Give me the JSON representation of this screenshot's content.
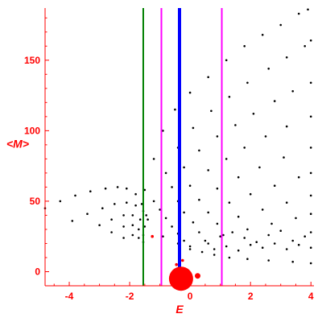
{
  "chart_data": {
    "type": "scatter",
    "xlabel": "E",
    "ylabel": "<M>",
    "xlim": [
      -4.8,
      4.1
    ],
    "ylim": [
      -10,
      187
    ],
    "x_ticks": [
      "-4",
      "-2",
      "0",
      "2",
      "4"
    ],
    "y_ticks": [
      "0",
      "50",
      "100",
      "150"
    ],
    "x_tick_values": [
      -4,
      -2,
      0,
      2,
      4
    ],
    "y_tick_values": [
      0,
      50,
      100,
      150
    ],
    "colors": {
      "axis": "#ff0000",
      "points": "#000000",
      "line_green": "#008000",
      "line_magenta": "#ff00ff",
      "line_blue": "#0000ff",
      "markers": "#ff0000"
    },
    "vertical_lines": [
      {
        "x": -1.55,
        "color": "#008000",
        "weight": "thin"
      },
      {
        "x": -0.95,
        "color": "#ff00ff",
        "weight": "thin"
      },
      {
        "x": -0.35,
        "color": "#0000ff",
        "weight": "thick"
      },
      {
        "x": 1.05,
        "color": "#ff00ff",
        "weight": "thin"
      }
    ],
    "series": [
      {
        "points": [
          [
            -4.8,
            45
          ],
          [
            -4.3,
            50
          ],
          [
            -3.8,
            54
          ],
          [
            -3.3,
            57
          ],
          [
            -2.8,
            59
          ],
          [
            -2.4,
            60
          ],
          [
            -2.1,
            59
          ],
          [
            -1.8,
            55
          ],
          [
            -1.6,
            48
          ],
          [
            -1.45,
            40
          ]
        ]
      },
      {
        "points": [
          [
            -3.9,
            36
          ],
          [
            -3.4,
            41
          ],
          [
            -2.9,
            45
          ],
          [
            -2.5,
            48
          ],
          [
            -2.1,
            49
          ],
          [
            -1.8,
            47
          ],
          [
            -1.55,
            43
          ],
          [
            -1.4,
            37
          ]
        ]
      },
      {
        "points": [
          [
            -3.0,
            33
          ],
          [
            -2.6,
            37
          ],
          [
            -2.2,
            40
          ],
          [
            -1.9,
            40
          ],
          [
            -1.65,
            37
          ],
          [
            -1.5,
            32
          ]
        ]
      },
      {
        "points": [
          [
            -2.6,
            28
          ],
          [
            -2.2,
            32
          ],
          [
            -1.9,
            33
          ],
          [
            -1.7,
            30
          ],
          [
            -1.55,
            26
          ]
        ]
      },
      {
        "points": [
          [
            -2.2,
            24
          ],
          [
            -1.9,
            26
          ],
          [
            -1.7,
            24
          ],
          [
            -1.55,
            21
          ]
        ]
      },
      {
        "points": [
          [
            -1.5,
            58
          ],
          [
            -1.2,
            80
          ],
          [
            -0.9,
            100
          ],
          [
            -0.5,
            115
          ],
          [
            0,
            127
          ],
          [
            0.6,
            138
          ],
          [
            1.2,
            150
          ],
          [
            1.8,
            160
          ],
          [
            2.4,
            168
          ],
          [
            3.0,
            175
          ],
          [
            3.6,
            183
          ],
          [
            3.9,
            186
          ]
        ]
      },
      {
        "points": [
          [
            -1.2,
            50
          ],
          [
            -0.8,
            70
          ],
          [
            -0.4,
            88
          ],
          [
            0.1,
            102
          ],
          [
            0.7,
            114
          ],
          [
            1.3,
            124
          ],
          [
            1.9,
            134
          ],
          [
            2.6,
            144
          ],
          [
            3.2,
            152
          ],
          [
            3.8,
            160
          ],
          [
            4.0,
            164
          ]
        ]
      },
      {
        "points": [
          [
            -1.0,
            44
          ],
          [
            -0.6,
            60
          ],
          [
            -0.2,
            74
          ],
          [
            0.3,
            86
          ],
          [
            0.9,
            96
          ],
          [
            1.5,
            104
          ],
          [
            2.1,
            112
          ],
          [
            2.8,
            121
          ],
          [
            3.4,
            128
          ],
          [
            4.0,
            134
          ]
        ]
      },
      {
        "points": [
          [
            -0.8,
            38
          ],
          [
            -0.4,
            50
          ],
          [
            0.0,
            61
          ],
          [
            0.6,
            72
          ],
          [
            1.2,
            80
          ],
          [
            1.8,
            88
          ],
          [
            2.5,
            96
          ],
          [
            3.2,
            103
          ],
          [
            4.0,
            110
          ]
        ]
      },
      {
        "points": [
          [
            -0.6,
            32
          ],
          [
            -0.2,
            42
          ],
          [
            0.3,
            51
          ],
          [
            0.9,
            59
          ],
          [
            1.6,
            67
          ],
          [
            2.3,
            74
          ],
          [
            3.1,
            81
          ],
          [
            4.0,
            88
          ]
        ]
      },
      {
        "points": [
          [
            -0.4,
            27
          ],
          [
            0.1,
            35
          ],
          [
            0.6,
            42
          ],
          [
            1.3,
            49
          ],
          [
            2.0,
            55
          ],
          [
            2.8,
            61
          ],
          [
            3.6,
            67
          ],
          [
            4.0,
            70
          ]
        ]
      },
      {
        "points": [
          [
            -0.2,
            22
          ],
          [
            0.3,
            28
          ],
          [
            0.9,
            34
          ],
          [
            1.6,
            39
          ],
          [
            2.4,
            44
          ],
          [
            3.2,
            49
          ],
          [
            4.0,
            54
          ]
        ]
      },
      {
        "points": [
          [
            0.0,
            18
          ],
          [
            0.5,
            22
          ],
          [
            1.1,
            26
          ],
          [
            1.9,
            30
          ],
          [
            2.7,
            34
          ],
          [
            3.5,
            38
          ],
          [
            4.0,
            41
          ]
        ]
      },
      {
        "points": [
          [
            -0.9,
            25
          ],
          [
            -0.4,
            20
          ],
          [
            0.0,
            16
          ],
          [
            0.4,
            14
          ],
          [
            0.8,
            12
          ],
          [
            1.3,
            10
          ],
          [
            1.9,
            9
          ],
          [
            2.6,
            8
          ],
          [
            3.4,
            7
          ],
          [
            4.0,
            6
          ]
        ]
      },
      {
        "points": [
          [
            0.6,
            20
          ],
          [
            1.0,
            25
          ],
          [
            1.4,
            28
          ],
          [
            1.8,
            24
          ],
          [
            2.2,
            21
          ],
          [
            2.6,
            26
          ],
          [
            3.0,
            29
          ],
          [
            3.4,
            22
          ],
          [
            3.8,
            25
          ],
          [
            4.0,
            28
          ]
        ]
      },
      {
        "points": [
          [
            0.8,
            16
          ],
          [
            1.2,
            18
          ],
          [
            1.6,
            15
          ],
          [
            2.0,
            19
          ],
          [
            2.4,
            17
          ],
          [
            2.8,
            20
          ],
          [
            3.2,
            16
          ],
          [
            3.6,
            19
          ],
          [
            4.0,
            17
          ]
        ]
      }
    ],
    "markers": [
      {
        "x": -0.3,
        "y": -5,
        "size": "large"
      },
      {
        "x": 0.25,
        "y": -3,
        "size": "medium"
      },
      {
        "x": -0.25,
        "y": 8,
        "size": "small"
      },
      {
        "x": -0.45,
        "y": 5,
        "size": "small"
      },
      {
        "x": -1.25,
        "y": 25,
        "size": "small"
      }
    ]
  }
}
